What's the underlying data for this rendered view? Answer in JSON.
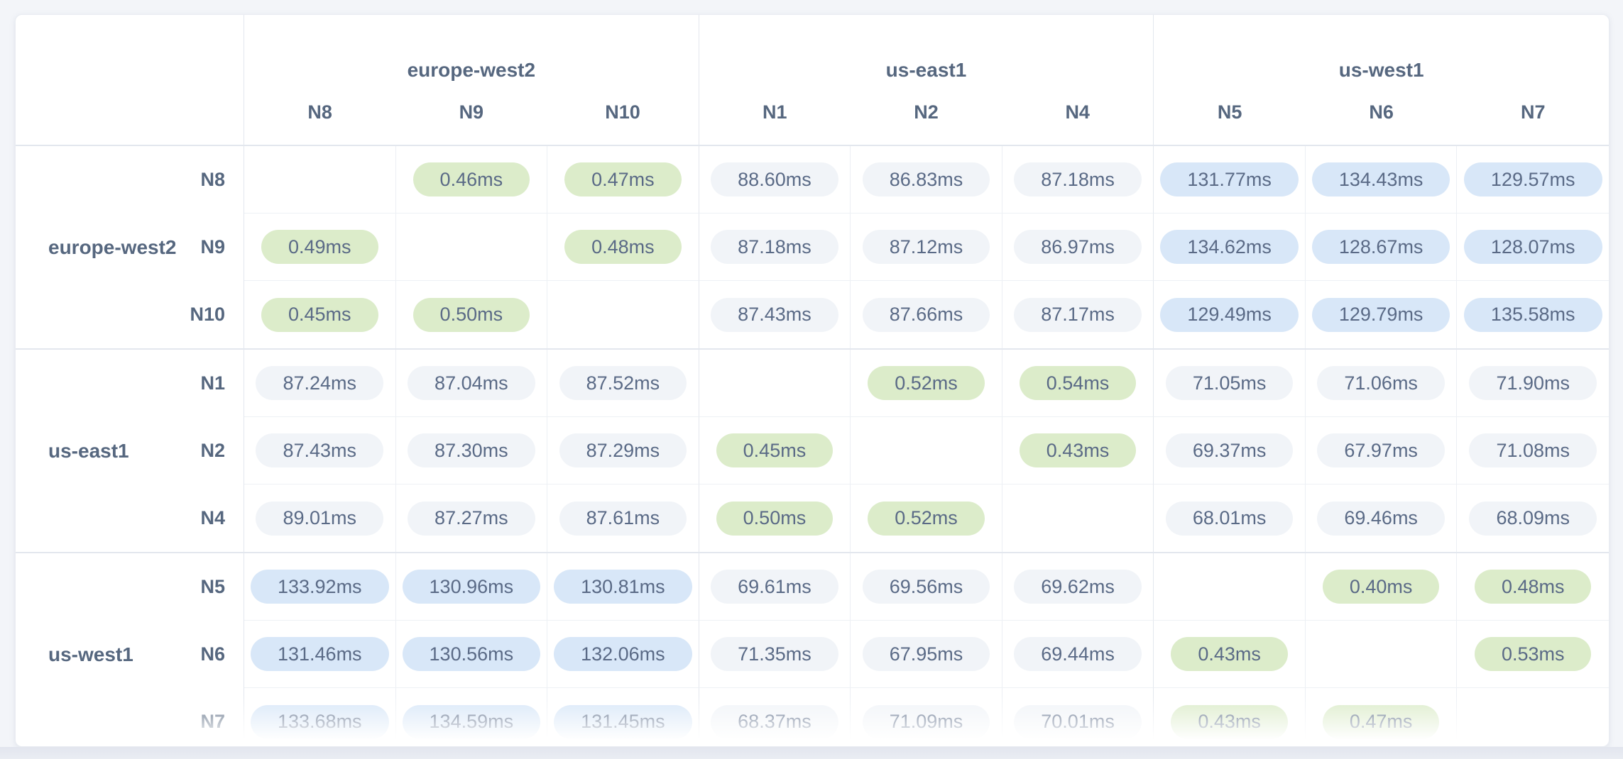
{
  "page": {
    "background_color": "#f3f5f9",
    "bottom_strip_color": "#e2e5ee"
  },
  "colors": {
    "intra_region_pill": "#dcecca",
    "cross_region_pill": "#f1f4f8",
    "long_haul_pill": "#d8e7f8",
    "value_text": "#5a6a86",
    "label_text": "#56677f",
    "card_background": "#ffffff"
  },
  "table": {
    "col_groups": [
      {
        "region": "europe-west2",
        "nodes": [
          "N8",
          "N9",
          "N10"
        ]
      },
      {
        "region": "us-east1",
        "nodes": [
          "N1",
          "N2",
          "N4"
        ]
      },
      {
        "region": "us-west1",
        "nodes": [
          "N5",
          "N6",
          "N7"
        ]
      }
    ],
    "row_groups": [
      {
        "region": "europe-west2",
        "rows": [
          {
            "node": "N8",
            "cells": [
              null,
              {
                "v": "0.46ms",
                "c": "low"
              },
              {
                "v": "0.47ms",
                "c": "low"
              },
              {
                "v": "88.60ms",
                "c": "mid"
              },
              {
                "v": "86.83ms",
                "c": "mid"
              },
              {
                "v": "87.18ms",
                "c": "mid"
              },
              {
                "v": "131.77ms",
                "c": "high"
              },
              {
                "v": "134.43ms",
                "c": "high"
              },
              {
                "v": "129.57ms",
                "c": "high"
              }
            ]
          },
          {
            "node": "N9",
            "cells": [
              {
                "v": "0.49ms",
                "c": "low"
              },
              null,
              {
                "v": "0.48ms",
                "c": "low"
              },
              {
                "v": "87.18ms",
                "c": "mid"
              },
              {
                "v": "87.12ms",
                "c": "mid"
              },
              {
                "v": "86.97ms",
                "c": "mid"
              },
              {
                "v": "134.62ms",
                "c": "high"
              },
              {
                "v": "128.67ms",
                "c": "high"
              },
              {
                "v": "128.07ms",
                "c": "high"
              }
            ]
          },
          {
            "node": "N10",
            "cells": [
              {
                "v": "0.45ms",
                "c": "low"
              },
              {
                "v": "0.50ms",
                "c": "low"
              },
              null,
              {
                "v": "87.43ms",
                "c": "mid"
              },
              {
                "v": "87.66ms",
                "c": "mid"
              },
              {
                "v": "87.17ms",
                "c": "mid"
              },
              {
                "v": "129.49ms",
                "c": "high"
              },
              {
                "v": "129.79ms",
                "c": "high"
              },
              {
                "v": "135.58ms",
                "c": "high"
              }
            ]
          }
        ]
      },
      {
        "region": "us-east1",
        "rows": [
          {
            "node": "N1",
            "cells": [
              {
                "v": "87.24ms",
                "c": "mid"
              },
              {
                "v": "87.04ms",
                "c": "mid"
              },
              {
                "v": "87.52ms",
                "c": "mid"
              },
              null,
              {
                "v": "0.52ms",
                "c": "low"
              },
              {
                "v": "0.54ms",
                "c": "low"
              },
              {
                "v": "71.05ms",
                "c": "mid"
              },
              {
                "v": "71.06ms",
                "c": "mid"
              },
              {
                "v": "71.90ms",
                "c": "mid"
              }
            ]
          },
          {
            "node": "N2",
            "cells": [
              {
                "v": "87.43ms",
                "c": "mid"
              },
              {
                "v": "87.30ms",
                "c": "mid"
              },
              {
                "v": "87.29ms",
                "c": "mid"
              },
              {
                "v": "0.45ms",
                "c": "low"
              },
              null,
              {
                "v": "0.43ms",
                "c": "low"
              },
              {
                "v": "69.37ms",
                "c": "mid"
              },
              {
                "v": "67.97ms",
                "c": "mid"
              },
              {
                "v": "71.08ms",
                "c": "mid"
              }
            ]
          },
          {
            "node": "N4",
            "cells": [
              {
                "v": "89.01ms",
                "c": "mid"
              },
              {
                "v": "87.27ms",
                "c": "mid"
              },
              {
                "v": "87.61ms",
                "c": "mid"
              },
              {
                "v": "0.50ms",
                "c": "low"
              },
              {
                "v": "0.52ms",
                "c": "low"
              },
              null,
              {
                "v": "68.01ms",
                "c": "mid"
              },
              {
                "v": "69.46ms",
                "c": "mid"
              },
              {
                "v": "68.09ms",
                "c": "mid"
              }
            ]
          }
        ]
      },
      {
        "region": "us-west1",
        "rows": [
          {
            "node": "N5",
            "cells": [
              {
                "v": "133.92ms",
                "c": "high"
              },
              {
                "v": "130.96ms",
                "c": "high"
              },
              {
                "v": "130.81ms",
                "c": "high"
              },
              {
                "v": "69.61ms",
                "c": "mid"
              },
              {
                "v": "69.56ms",
                "c": "mid"
              },
              {
                "v": "69.62ms",
                "c": "mid"
              },
              null,
              {
                "v": "0.40ms",
                "c": "low"
              },
              {
                "v": "0.48ms",
                "c": "low"
              }
            ]
          },
          {
            "node": "N6",
            "cells": [
              {
                "v": "131.46ms",
                "c": "high"
              },
              {
                "v": "130.56ms",
                "c": "high"
              },
              {
                "v": "132.06ms",
                "c": "high"
              },
              {
                "v": "71.35ms",
                "c": "mid"
              },
              {
                "v": "67.95ms",
                "c": "mid"
              },
              {
                "v": "69.44ms",
                "c": "mid"
              },
              {
                "v": "0.43ms",
                "c": "low"
              },
              null,
              {
                "v": "0.53ms",
                "c": "low"
              }
            ]
          },
          {
            "node": "N7",
            "cells": [
              {
                "v": "133.68ms",
                "c": "high"
              },
              {
                "v": "134.59ms",
                "c": "high"
              },
              {
                "v": "131.45ms",
                "c": "high"
              },
              {
                "v": "68.37ms",
                "c": "mid"
              },
              {
                "v": "71.09ms",
                "c": "mid"
              },
              {
                "v": "70.01ms",
                "c": "mid"
              },
              {
                "v": "0.43ms",
                "c": "low"
              },
              {
                "v": "0.47ms",
                "c": "low"
              },
              null
            ]
          }
        ]
      }
    ]
  }
}
